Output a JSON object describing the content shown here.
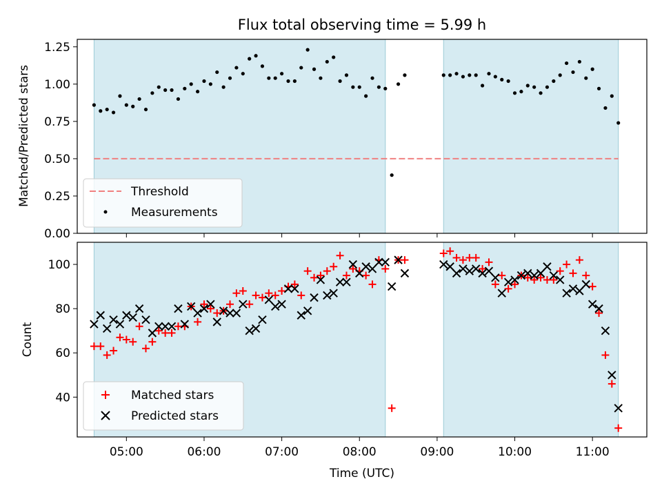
{
  "chart_data": [
    {
      "type": "scatter",
      "title": "Flux total observing time = 5.99 h",
      "xlabel": "",
      "ylabel": "Matched/Predicted stars",
      "xlim": [
        "04:22",
        "11:42"
      ],
      "ylim": [
        0,
        1.3
      ],
      "y_ticks": [
        "0.00",
        "0.25",
        "0.50",
        "0.75",
        "1.00",
        "1.25"
      ],
      "x_ticks": [
        "05:00",
        "06:00",
        "07:00",
        "08:00",
        "09:00",
        "10:00",
        "11:00"
      ],
      "shaded_intervals": [
        [
          "04:35",
          "08:20"
        ],
        [
          "09:05",
          "11:20"
        ]
      ],
      "threshold": {
        "name": "Threshold",
        "value": 0.5,
        "x_range": [
          "04:35",
          "11:20"
        ],
        "color": "#f08080",
        "style": "dashed"
      },
      "legend": {
        "position": "lower-left",
        "entries": [
          "Threshold",
          "Measurements"
        ]
      },
      "series": [
        {
          "name": "Measurements",
          "color": "#000000",
          "marker": "dot",
          "x": [
            "04:35",
            "04:40",
            "04:45",
            "04:50",
            "04:55",
            "05:00",
            "05:05",
            "05:10",
            "05:15",
            "05:20",
            "05:25",
            "05:30",
            "05:35",
            "05:40",
            "05:45",
            "05:50",
            "05:55",
            "06:00",
            "06:05",
            "06:10",
            "06:15",
            "06:20",
            "06:25",
            "06:30",
            "06:35",
            "06:40",
            "06:45",
            "06:50",
            "06:55",
            "07:00",
            "07:05",
            "07:10",
            "07:15",
            "07:20",
            "07:25",
            "07:30",
            "07:35",
            "07:40",
            "07:45",
            "07:50",
            "07:55",
            "08:00",
            "08:05",
            "08:10",
            "08:15",
            "08:20",
            "08:25",
            "08:30",
            "08:35",
            "09:05",
            "09:10",
            "09:15",
            "09:20",
            "09:25",
            "09:30",
            "09:35",
            "09:40",
            "09:45",
            "09:50",
            "09:55",
            "10:00",
            "10:05",
            "10:10",
            "10:15",
            "10:20",
            "10:25",
            "10:30",
            "10:35",
            "10:40",
            "10:45",
            "10:50",
            "10:55",
            "11:00",
            "11:05",
            "11:10",
            "11:15",
            "11:20"
          ],
          "y": [
            0.86,
            0.82,
            0.83,
            0.81,
            0.92,
            0.86,
            0.85,
            0.9,
            0.83,
            0.94,
            0.98,
            0.96,
            0.96,
            0.9,
            0.97,
            1.0,
            0.95,
            1.02,
            1.0,
            1.08,
            0.98,
            1.04,
            1.11,
            1.07,
            1.17,
            1.19,
            1.12,
            1.04,
            1.04,
            1.07,
            1.02,
            1.02,
            1.11,
            1.23,
            1.1,
            1.04,
            1.15,
            1.18,
            1.02,
            1.06,
            0.98,
            0.98,
            0.92,
            1.04,
            0.98,
            0.97,
            0.39,
            1.0,
            1.06,
            1.06,
            1.06,
            1.07,
            1.05,
            1.06,
            1.06,
            0.99,
            1.07,
            1.05,
            1.03,
            1.02,
            0.94,
            0.95,
            0.99,
            0.98,
            0.94,
            0.98,
            1.02,
            1.06,
            1.14,
            1.08,
            1.15,
            1.04,
            1.1,
            0.97,
            0.84,
            0.92,
            0.74
          ]
        }
      ]
    },
    {
      "type": "scatter",
      "title": "",
      "xlabel": "Time (UTC)",
      "ylabel": "Count",
      "xlim": [
        "04:22",
        "11:42"
      ],
      "ylim": [
        22,
        110
      ],
      "y_ticks": [
        "40",
        "60",
        "80",
        "100"
      ],
      "x_ticks": [
        "05:00",
        "06:00",
        "07:00",
        "08:00",
        "09:00",
        "10:00",
        "11:00"
      ],
      "shaded_intervals": [
        [
          "04:35",
          "08:20"
        ],
        [
          "09:05",
          "11:20"
        ]
      ],
      "legend": {
        "position": "lower-left",
        "entries": [
          "Matched stars",
          "Predicted stars"
        ]
      },
      "series": [
        {
          "name": "Matched stars",
          "color": "#ff0000",
          "marker": "plus",
          "x": [
            "04:35",
            "04:40",
            "04:45",
            "04:50",
            "04:55",
            "05:00",
            "05:05",
            "05:10",
            "05:15",
            "05:20",
            "05:25",
            "05:30",
            "05:35",
            "05:40",
            "05:45",
            "05:50",
            "05:55",
            "06:00",
            "06:05",
            "06:10",
            "06:15",
            "06:20",
            "06:25",
            "06:30",
            "06:35",
            "06:40",
            "06:45",
            "06:50",
            "06:55",
            "07:00",
            "07:05",
            "07:10",
            "07:15",
            "07:20",
            "07:25",
            "07:30",
            "07:35",
            "07:40",
            "07:45",
            "07:50",
            "07:55",
            "08:00",
            "08:05",
            "08:10",
            "08:15",
            "08:20",
            "08:25",
            "08:30",
            "08:35",
            "09:05",
            "09:10",
            "09:15",
            "09:20",
            "09:25",
            "09:30",
            "09:35",
            "09:40",
            "09:45",
            "09:50",
            "09:55",
            "10:00",
            "10:05",
            "10:10",
            "10:15",
            "10:20",
            "10:25",
            "10:30",
            "10:35",
            "10:40",
            "10:45",
            "10:50",
            "10:55",
            "11:00",
            "11:05",
            "11:10",
            "11:15",
            "11:20"
          ],
          "y": [
            63,
            63,
            59,
            61,
            67,
            66,
            65,
            72,
            62,
            65,
            70,
            69,
            69,
            72,
            72,
            81,
            74,
            82,
            80,
            78,
            79,
            82,
            87,
            88,
            82,
            86,
            85,
            87,
            86,
            88,
            90,
            91,
            86,
            97,
            94,
            95,
            97,
            99,
            104,
            95,
            98,
            97,
            95,
            91,
            102,
            98,
            35,
            102,
            102,
            105,
            106,
            103,
            102,
            103,
            103,
            98,
            101,
            91,
            95,
            89,
            91,
            95,
            94,
            93,
            94,
            93,
            93,
            97,
            100,
            96,
            102,
            95,
            90,
            78,
            59,
            46,
            26
          ]
        },
        {
          "name": "Predicted stars",
          "color": "#000000",
          "marker": "x",
          "x": [
            "04:35",
            "04:40",
            "04:45",
            "04:50",
            "04:55",
            "05:00",
            "05:05",
            "05:10",
            "05:15",
            "05:20",
            "05:25",
            "05:30",
            "05:35",
            "05:40",
            "05:45",
            "05:50",
            "05:55",
            "06:00",
            "06:05",
            "06:10",
            "06:15",
            "06:20",
            "06:25",
            "06:30",
            "06:35",
            "06:40",
            "06:45",
            "06:50",
            "06:55",
            "07:00",
            "07:05",
            "07:10",
            "07:15",
            "07:20",
            "07:25",
            "07:30",
            "07:35",
            "07:40",
            "07:45",
            "07:50",
            "07:55",
            "08:00",
            "08:05",
            "08:10",
            "08:15",
            "08:20",
            "08:25",
            "08:30",
            "08:35",
            "09:05",
            "09:10",
            "09:15",
            "09:20",
            "09:25",
            "09:30",
            "09:35",
            "09:40",
            "09:45",
            "09:50",
            "09:55",
            "10:00",
            "10:05",
            "10:10",
            "10:15",
            "10:20",
            "10:25",
            "10:30",
            "10:35",
            "10:40",
            "10:45",
            "10:50",
            "10:55",
            "11:00",
            "11:05",
            "11:10",
            "11:15",
            "11:20"
          ],
          "y": [
            73,
            77,
            71,
            75,
            73,
            77,
            76,
            80,
            75,
            69,
            72,
            72,
            72,
            80,
            73,
            81,
            78,
            80,
            82,
            74,
            79,
            78,
            78,
            82,
            70,
            71,
            75,
            84,
            81,
            82,
            89,
            89,
            77,
            79,
            85,
            93,
            86,
            87,
            92,
            92,
            100,
            96,
            99,
            98,
            101,
            101,
            90,
            102,
            96,
            100,
            99,
            96,
            98,
            97,
            98,
            96,
            97,
            94,
            87,
            92,
            93,
            95,
            96,
            95,
            96,
            99,
            95,
            93,
            87,
            89,
            88,
            91,
            82,
            80,
            70,
            50,
            35
          ]
        }
      ]
    }
  ]
}
